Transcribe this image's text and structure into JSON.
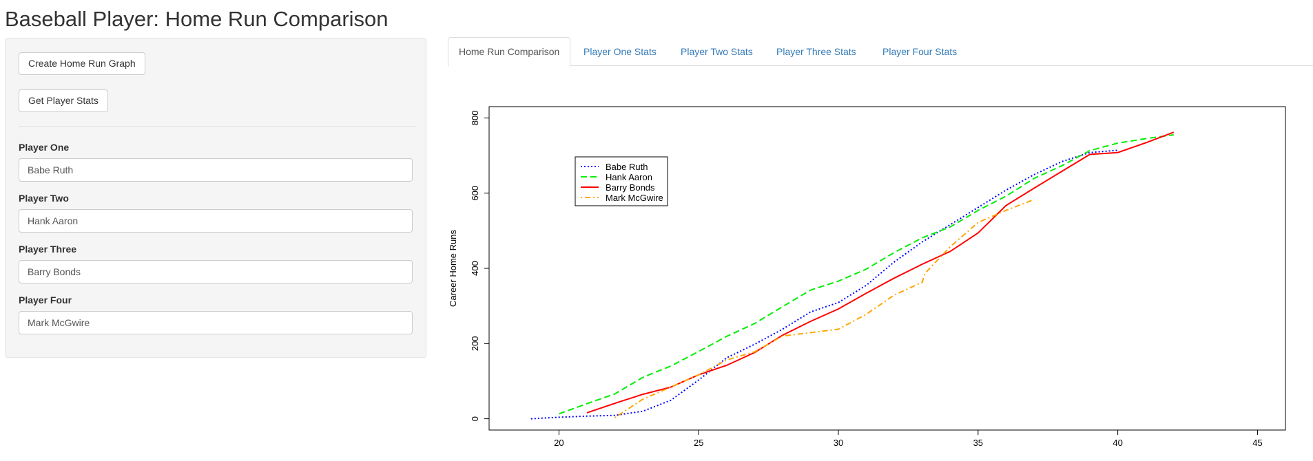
{
  "page": {
    "title": "Baseball Player: Home Run Comparison"
  },
  "sidebar": {
    "create_graph_label": "Create Home Run Graph",
    "get_stats_label": "Get Player Stats",
    "fields": [
      {
        "label": "Player One",
        "value": "Babe Ruth"
      },
      {
        "label": "Player Two",
        "value": "Hank Aaron"
      },
      {
        "label": "Player Three",
        "value": "Barry Bonds"
      },
      {
        "label": "Player Four",
        "value": "Mark McGwire"
      }
    ]
  },
  "tabs": [
    {
      "label": "Home Run Comparison",
      "active": true
    },
    {
      "label": "Player One Stats",
      "active": false
    },
    {
      "label": "Player Two Stats",
      "active": false
    },
    {
      "label": "Player Three Stats",
      "active": false
    },
    {
      "label": "Player Four Stats",
      "active": false
    }
  ],
  "chart_data": {
    "type": "line",
    "title": "",
    "xlabel": "",
    "ylabel": "Career Home Runs",
    "xlim": [
      17.5,
      46
    ],
    "ylim": [
      -30,
      830
    ],
    "x_ticks": [
      20,
      25,
      30,
      35,
      40,
      45
    ],
    "y_ticks": [
      0,
      200,
      400,
      600,
      800
    ],
    "grid": false,
    "legend_position": "top-left",
    "series": [
      {
        "name": "Babe Ruth",
        "color": "#0000ff",
        "dash": "dotted",
        "x": [
          19,
          20,
          21,
          22,
          23,
          24,
          25,
          26,
          27,
          28,
          29,
          30,
          31,
          32,
          33,
          34,
          35,
          36,
          37,
          38,
          39,
          40
        ],
        "y": [
          0,
          4,
          7,
          9,
          20,
          49,
          103,
          162,
          198,
          238,
          284,
          309,
          355,
          417,
          470,
          516,
          562,
          608,
          649,
          684,
          708,
          714
        ]
      },
      {
        "name": "Hank Aaron",
        "color": "#00ee00",
        "dash": "dashed",
        "x": [
          20,
          21,
          22,
          23,
          24,
          25,
          26,
          27,
          28,
          29,
          30,
          31,
          32,
          33,
          34,
          35,
          36,
          37,
          38,
          39,
          40,
          41,
          42
        ],
        "y": [
          13,
          40,
          66,
          110,
          140,
          179,
          219,
          253,
          298,
          342,
          366,
          398,
          442,
          481,
          510,
          554,
          592,
          639,
          673,
          713,
          733,
          745,
          755
        ]
      },
      {
        "name": "Barry Bonds",
        "color": "#ff0000",
        "dash": "solid",
        "x": [
          21,
          22,
          23,
          24,
          25,
          26,
          27,
          28,
          29,
          30,
          31,
          32,
          33,
          34,
          35,
          36,
          37,
          38,
          39,
          40,
          41,
          42
        ],
        "y": [
          16,
          41,
          65,
          84,
          117,
          142,
          176,
          222,
          259,
          292,
          334,
          374,
          411,
          445,
          494,
          567,
          613,
          658,
          703,
          708,
          734,
          762
        ]
      },
      {
        "name": "Mark McGwire",
        "color": "#ffa500",
        "dash": "dotdash",
        "x": [
          22,
          23,
          24,
          25,
          26,
          27,
          28,
          29,
          30,
          31,
          32,
          33,
          33.1,
          34,
          35,
          36,
          37
        ],
        "y": [
          3,
          52,
          84,
          117,
          156,
          178,
          220,
          229,
          238,
          278,
          329,
          363,
          387,
          457,
          522,
          554,
          583
        ]
      }
    ]
  }
}
